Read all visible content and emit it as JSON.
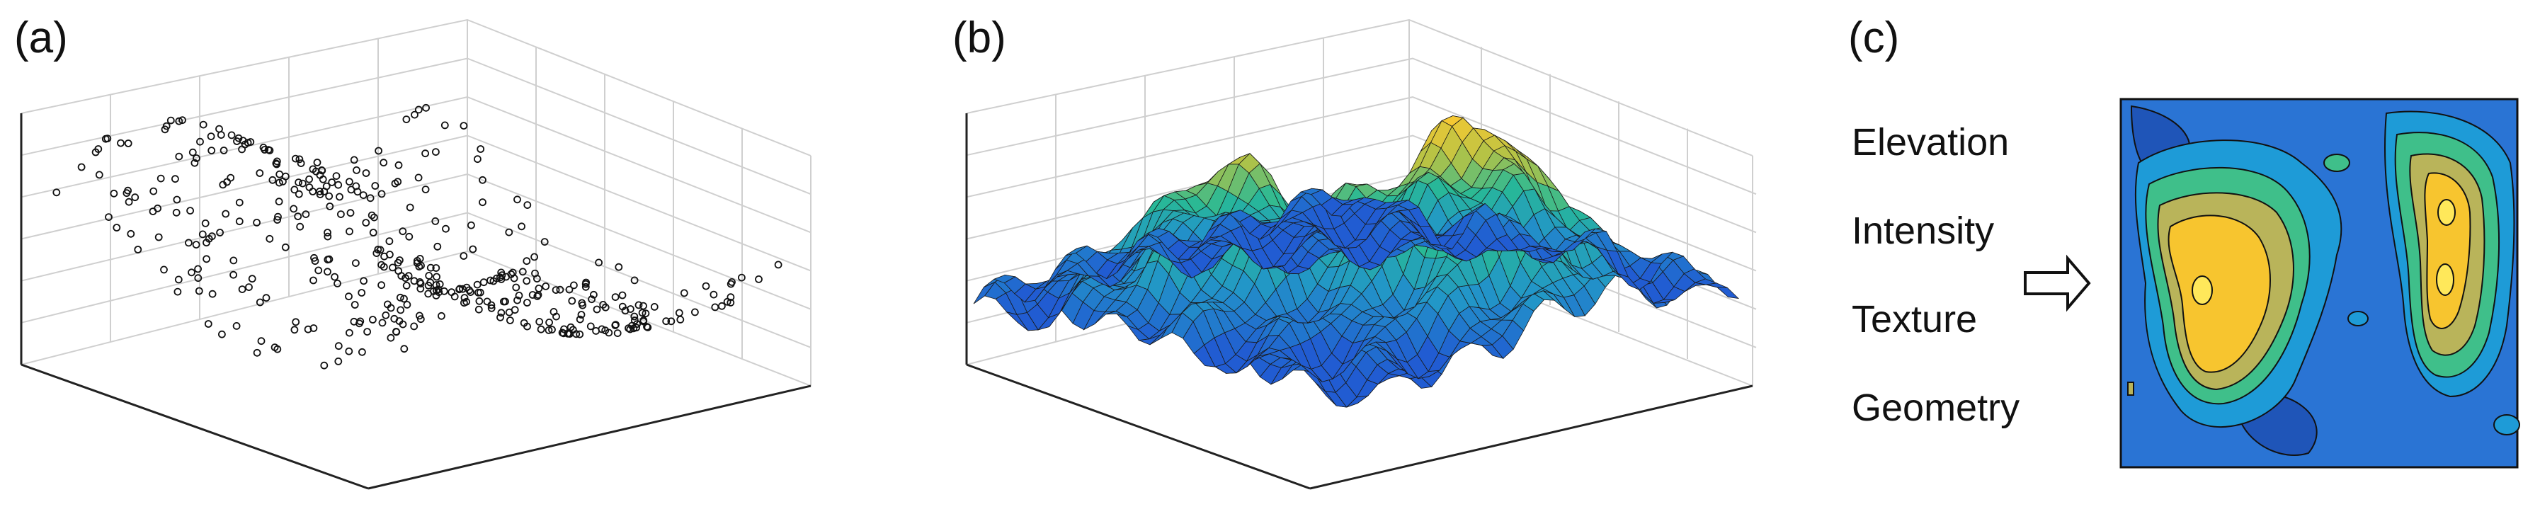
{
  "labels": {
    "a": "(a)",
    "b": "(b)",
    "c": "(c)"
  },
  "attributes": [
    "Elevation",
    "Intensity",
    "Texture",
    "Geometry"
  ],
  "colors": {
    "surface_low": "#2a6fd6",
    "surface_mid": "#21b3a6",
    "surface_high": "#f3c23a",
    "map_base": "#2a74d4",
    "map_green": "#3fbf8a",
    "map_olive": "#b9b45a",
    "map_yellow": "#f7c52f"
  },
  "icons": {
    "arrow": "right-arrow-icon"
  }
}
